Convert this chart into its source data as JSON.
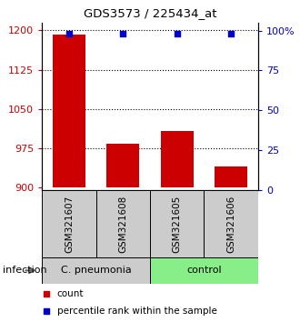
{
  "title": "GDS3573 / 225434_at",
  "samples": [
    "GSM321607",
    "GSM321608",
    "GSM321605",
    "GSM321606"
  ],
  "bar_values": [
    1192,
    983,
    1007,
    940
  ],
  "percentile_values": [
    98,
    98,
    98,
    98
  ],
  "bar_color": "#cc0000",
  "percentile_color": "#0000cc",
  "ylim_left": [
    895,
    1215
  ],
  "ylim_right": [
    0,
    105
  ],
  "yticks_left": [
    900,
    975,
    1050,
    1125,
    1200
  ],
  "yticks_right": [
    0,
    25,
    50,
    75,
    100
  ],
  "ytick_labels_right": [
    "0",
    "25",
    "50",
    "75",
    "100%"
  ],
  "groups": [
    {
      "label": "C. pneumonia",
      "indices": [
        0,
        1
      ],
      "color": "#cccccc"
    },
    {
      "label": "control",
      "indices": [
        2,
        3
      ],
      "color": "#88ee88"
    }
  ],
  "group_row_label": "infection",
  "legend_items": [
    {
      "color": "#cc0000",
      "label": "count"
    },
    {
      "color": "#0000cc",
      "label": "percentile rank within the sample"
    }
  ],
  "bar_width": 0.6,
  "sample_box_color": "#cccccc",
  "figsize": [
    3.3,
    3.54
  ],
  "dpi": 100
}
